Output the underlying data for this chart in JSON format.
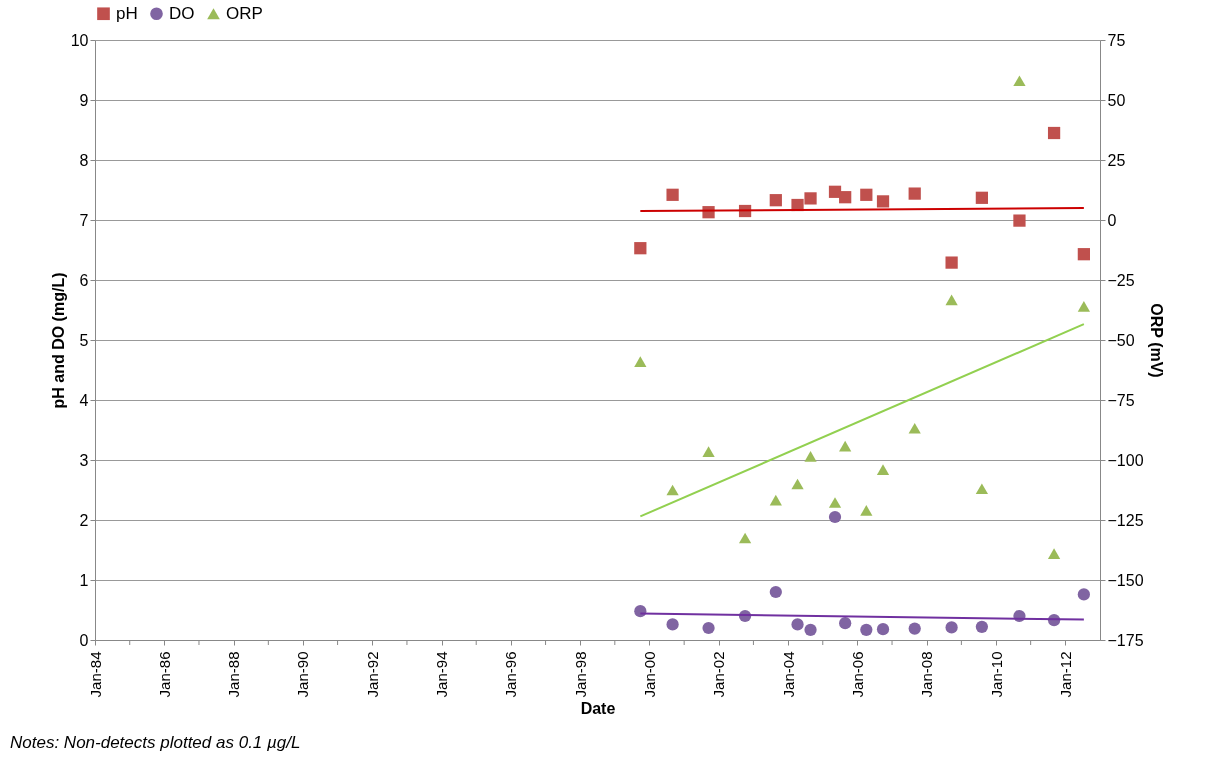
{
  "chart_data": {
    "type": "scatter",
    "xlabel": "Date",
    "ylabel": "pH and DO (mg/L)",
    "y2label": "ORP (mV)",
    "annotations": [
      "Notes: Non-detects plotted as 0.1  µg/L"
    ],
    "xlim": [
      "1984-01-01",
      "2013-01-01"
    ],
    "xticks": [
      {
        "value": "1984-01-01",
        "label": "Jan-84"
      },
      {
        "value": "1985-01-01",
        "label": null
      },
      {
        "value": "1986-01-01",
        "label": "Jan-86"
      },
      {
        "value": "1987-01-01",
        "label": null
      },
      {
        "value": "1988-01-01",
        "label": "Jan-88"
      },
      {
        "value": "1989-01-01",
        "label": null
      },
      {
        "value": "1990-01-01",
        "label": "Jan-90"
      },
      {
        "value": "1991-01-01",
        "label": null
      },
      {
        "value": "1992-01-01",
        "label": "Jan-92"
      },
      {
        "value": "1993-01-01",
        "label": null
      },
      {
        "value": "1994-01-01",
        "label": "Jan-94"
      },
      {
        "value": "1995-01-01",
        "label": null
      },
      {
        "value": "1996-01-01",
        "label": "Jan-96"
      },
      {
        "value": "1997-01-01",
        "label": null
      },
      {
        "value": "1998-01-01",
        "label": "Jan-98"
      },
      {
        "value": "1999-01-01",
        "label": null
      },
      {
        "value": "2000-01-01",
        "label": "Jan-00"
      },
      {
        "value": "2001-01-01",
        "label": null
      },
      {
        "value": "2002-01-01",
        "label": "Jan-02"
      },
      {
        "value": "2003-01-01",
        "label": null
      },
      {
        "value": "2004-01-01",
        "label": "Jan-04"
      },
      {
        "value": "2005-01-01",
        "label": null
      },
      {
        "value": "2006-01-01",
        "label": "Jan-06"
      },
      {
        "value": "2007-01-01",
        "label": null
      },
      {
        "value": "2008-01-01",
        "label": "Jan-08"
      },
      {
        "value": "2009-01-01",
        "label": null
      },
      {
        "value": "2010-01-01",
        "label": "Jan-10"
      },
      {
        "value": "2011-01-01",
        "label": null
      },
      {
        "value": "2012-01-01",
        "label": "Jan-12"
      }
    ],
    "ylim": [
      0,
      10
    ],
    "yticks": [
      0,
      1,
      2,
      3,
      4,
      5,
      6,
      7,
      8,
      9,
      10
    ],
    "y2lim": [
      -175,
      75
    ],
    "y2ticks": [
      -175,
      -150,
      -125,
      -100,
      -75,
      -50,
      -25,
      0,
      25,
      50,
      75
    ],
    "grid": "y",
    "legend": "top",
    "x": [
      "1999-09-27",
      "2000-09-01",
      "2001-09-15",
      "2002-10-05",
      "2003-08-25",
      "2004-04-10",
      "2004-08-25",
      "2005-05-10",
      "2005-08-25",
      "2006-04-05",
      "2006-09-28",
      "2007-08-28",
      "2008-09-20",
      "2009-08-05",
      "2010-09-05",
      "2011-09-05",
      "2012-07-15"
    ],
    "series": [
      {
        "name": "pH",
        "marker": "square",
        "color": "#c0504d",
        "values": [
          6.53,
          7.42,
          7.13,
          7.15,
          7.33,
          7.25,
          7.36,
          7.47,
          7.38,
          7.42,
          7.31,
          7.44,
          6.29,
          7.37,
          6.99,
          8.45,
          6.43
        ]
      },
      {
        "name": "DO",
        "marker": "circle",
        "color": "#8064a2",
        "values": [
          0.48,
          0.26,
          0.2,
          0.4,
          0.8,
          0.26,
          0.17,
          2.05,
          0.28,
          0.17,
          0.18,
          0.19,
          0.21,
          0.22,
          0.4,
          0.33,
          0.76
        ]
      },
      {
        "name": "ORP",
        "marker": "triangle",
        "axis": "y2",
        "color": "#9bbb59",
        "values": [
          -59,
          -112.5,
          -96.5,
          -132.5,
          -116.7,
          -110,
          -98.5,
          -117.7,
          -94.2,
          -121,
          -104,
          -86.8,
          -33.3,
          -112,
          58,
          -139,
          -36
        ]
      },
      {
        "type": "line",
        "color": "#cc0000",
        "x": [
          "1999-09-27",
          "2012-07-15"
        ],
        "values": [
          7.15,
          7.2
        ]
      },
      {
        "type": "line",
        "color": "#7030a0",
        "x": [
          "1999-09-27",
          "2012-07-15"
        ],
        "values": [
          0.44,
          0.34
        ]
      },
      {
        "type": "line",
        "axis": "y2",
        "color": "#92d050",
        "x": [
          "1999-09-27",
          "2012-07-15"
        ],
        "values": [
          -123.5,
          -43.4
        ]
      }
    ]
  }
}
